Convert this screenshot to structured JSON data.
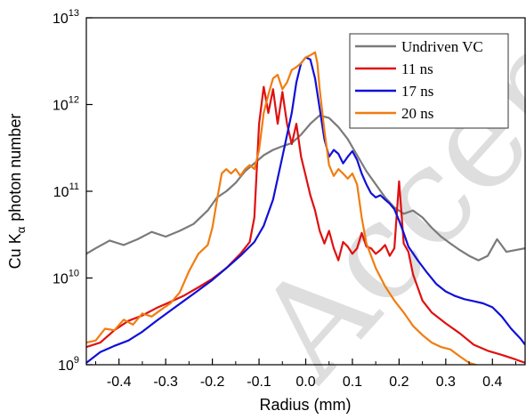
{
  "chart_data": {
    "type": "line",
    "xlabel": "Radius (mm)",
    "ylabel": {
      "prefix": "Cu K",
      "subscript": "α",
      "suffix": "photon number"
    },
    "xlim": [
      -0.47,
      0.47
    ],
    "ylim": [
      1000000000.0,
      10000000000000.0
    ],
    "yscale": "log",
    "xticks": [
      -0.4,
      -0.3,
      -0.2,
      -0.1,
      0.0,
      0.1,
      0.2,
      0.3,
      0.4
    ],
    "xtick_labels": [
      "-0.4",
      "-0.3",
      "-0.2",
      "-0.1",
      "0.0",
      "0.1",
      "0.2",
      "0.3",
      "0.4"
    ],
    "yticks": [
      {
        "value": 1000000000.0,
        "base": "10",
        "exp": "9"
      },
      {
        "value": 10000000000.0,
        "base": "10",
        "exp": "10"
      },
      {
        "value": 100000000000.0,
        "base": "10",
        "exp": "11"
      },
      {
        "value": 1000000000000.0,
        "base": "10",
        "exp": "12"
      },
      {
        "value": 10000000000000.0,
        "base": "10",
        "exp": "13"
      }
    ],
    "grid": false,
    "legend_position": "top-right",
    "watermark": "Accepted",
    "series": [
      {
        "name": "Undriven VC",
        "color": "#7a7a7a",
        "points": [
          [
            -0.47,
            19000000000.0
          ],
          [
            -0.45,
            22000000000.0
          ],
          [
            -0.42,
            27000000000.0
          ],
          [
            -0.39,
            24000000000.0
          ],
          [
            -0.36,
            28000000000.0
          ],
          [
            -0.33,
            34000000000.0
          ],
          [
            -0.3,
            30000000000.0
          ],
          [
            -0.27,
            35000000000.0
          ],
          [
            -0.24,
            42000000000.0
          ],
          [
            -0.21,
            60000000000.0
          ],
          [
            -0.19,
            85000000000.0
          ],
          [
            -0.17,
            100000000000.0
          ],
          [
            -0.15,
            125000000000.0
          ],
          [
            -0.13,
            170000000000.0
          ],
          [
            -0.11,
            210000000000.0
          ],
          [
            -0.09,
            260000000000.0
          ],
          [
            -0.07,
            300000000000.0
          ],
          [
            -0.05,
            330000000000.0
          ],
          [
            -0.03,
            360000000000.0
          ],
          [
            -0.01,
            450000000000.0
          ],
          [
            0.01,
            600000000000.0
          ],
          [
            0.03,
            750000000000.0
          ],
          [
            0.05,
            700000000000.0
          ],
          [
            0.07,
            550000000000.0
          ],
          [
            0.09,
            400000000000.0
          ],
          [
            0.11,
            260000000000.0
          ],
          [
            0.13,
            170000000000.0
          ],
          [
            0.15,
            120000000000.0
          ],
          [
            0.17,
            85000000000.0
          ],
          [
            0.19,
            65000000000.0
          ],
          [
            0.21,
            55000000000.0
          ],
          [
            0.23,
            60000000000.0
          ],
          [
            0.25,
            50000000000.0
          ],
          [
            0.27,
            38000000000.0
          ],
          [
            0.29,
            30000000000.0
          ],
          [
            0.31,
            25000000000.0
          ],
          [
            0.33,
            21000000000.0
          ],
          [
            0.35,
            18000000000.0
          ],
          [
            0.37,
            16000000000.0
          ],
          [
            0.39,
            18000000000.0
          ],
          [
            0.41,
            28000000000.0
          ],
          [
            0.43,
            20000000000.0
          ],
          [
            0.45,
            21000000000.0
          ],
          [
            0.47,
            22000000000.0
          ]
        ]
      },
      {
        "name": "11 ns",
        "color": "#e01010",
        "points": [
          [
            -0.47,
            1600000000.0
          ],
          [
            -0.44,
            1800000000.0
          ],
          [
            -0.41,
            2500000000.0
          ],
          [
            -0.38,
            3200000000.0
          ],
          [
            -0.35,
            3700000000.0
          ],
          [
            -0.32,
            4500000000.0
          ],
          [
            -0.29,
            5300000000.0
          ],
          [
            -0.26,
            6300000000.0
          ],
          [
            -0.23,
            7800000000.0
          ],
          [
            -0.2,
            9800000000.0
          ],
          [
            -0.17,
            13000000000.0
          ],
          [
            -0.14,
            19000000000.0
          ],
          [
            -0.12,
            26000000000.0
          ],
          [
            -0.11,
            50000000000.0
          ],
          [
            -0.1,
            600000000000.0
          ],
          [
            -0.09,
            1600000000000.0
          ],
          [
            -0.08,
            800000000000.0
          ],
          [
            -0.07,
            1500000000000.0
          ],
          [
            -0.06,
            600000000000.0
          ],
          [
            -0.05,
            1400000000000.0
          ],
          [
            -0.04,
            600000000000.0
          ],
          [
            -0.03,
            350000000000.0
          ],
          [
            -0.02,
            600000000000.0
          ],
          [
            -0.01,
            250000000000.0
          ],
          [
            0.0,
            150000000000.0
          ],
          [
            0.01,
            90000000000.0
          ],
          [
            0.02,
            60000000000.0
          ],
          [
            0.03,
            35000000000.0
          ],
          [
            0.04,
            25000000000.0
          ],
          [
            0.05,
            35000000000.0
          ],
          [
            0.06,
            22000000000.0
          ],
          [
            0.07,
            16000000000.0
          ],
          [
            0.08,
            26000000000.0
          ],
          [
            0.09,
            23000000000.0
          ],
          [
            0.1,
            19000000000.0
          ],
          [
            0.11,
            22000000000.0
          ],
          [
            0.12,
            33000000000.0
          ],
          [
            0.13,
            23000000000.0
          ],
          [
            0.14,
            22000000000.0
          ],
          [
            0.15,
            19000000000.0
          ],
          [
            0.16,
            21000000000.0
          ],
          [
            0.17,
            24000000000.0
          ],
          [
            0.18,
            18000000000.0
          ],
          [
            0.19,
            22000000000.0
          ],
          [
            0.2,
            130000000000.0
          ],
          [
            0.21,
            25000000000.0
          ],
          [
            0.22,
            20000000000.0
          ],
          [
            0.23,
            11000000000.0
          ],
          [
            0.25,
            5500000000.0
          ],
          [
            0.27,
            4000000000.0
          ],
          [
            0.3,
            3000000000.0
          ],
          [
            0.33,
            2300000000.0
          ],
          [
            0.36,
            1700000000.0
          ],
          [
            0.39,
            1450000000.0
          ],
          [
            0.42,
            1300000000.0
          ],
          [
            0.45,
            1150000000.0
          ],
          [
            0.47,
            1050000000.0
          ]
        ]
      },
      {
        "name": "17 ns",
        "color": "#1010d8",
        "points": [
          [
            -0.47,
            1050000000.0
          ],
          [
            -0.44,
            1400000000.0
          ],
          [
            -0.41,
            1650000000.0
          ],
          [
            -0.38,
            1900000000.0
          ],
          [
            -0.35,
            2400000000.0
          ],
          [
            -0.32,
            3200000000.0
          ],
          [
            -0.29,
            4200000000.0
          ],
          [
            -0.26,
            5500000000.0
          ],
          [
            -0.23,
            7200000000.0
          ],
          [
            -0.2,
            9500000000.0
          ],
          [
            -0.17,
            13000000000.0
          ],
          [
            -0.14,
            18000000000.0
          ],
          [
            -0.11,
            26000000000.0
          ],
          [
            -0.09,
            40000000000.0
          ],
          [
            -0.07,
            80000000000.0
          ],
          [
            -0.05,
            250000000000.0
          ],
          [
            -0.03,
            800000000000.0
          ],
          [
            -0.02,
            1800000000000.0
          ],
          [
            -0.01,
            3000000000000.0
          ],
          [
            0.0,
            3500000000000.0
          ],
          [
            0.01,
            3300000000000.0
          ],
          [
            0.02,
            2000000000000.0
          ],
          [
            0.03,
            900000000000.0
          ],
          [
            0.04,
            400000000000.0
          ],
          [
            0.05,
            250000000000.0
          ],
          [
            0.06,
            300000000000.0
          ],
          [
            0.07,
            270000000000.0
          ],
          [
            0.08,
            210000000000.0
          ],
          [
            0.09,
            250000000000.0
          ],
          [
            0.1,
            290000000000.0
          ],
          [
            0.11,
            230000000000.0
          ],
          [
            0.12,
            160000000000.0
          ],
          [
            0.13,
            120000000000.0
          ],
          [
            0.14,
            95000000000.0
          ],
          [
            0.15,
            85000000000.0
          ],
          [
            0.16,
            90000000000.0
          ],
          [
            0.17,
            80000000000.0
          ],
          [
            0.18,
            72000000000.0
          ],
          [
            0.19,
            62000000000.0
          ],
          [
            0.2,
            46000000000.0
          ],
          [
            0.21,
            33000000000.0
          ],
          [
            0.22,
            23000000000.0
          ],
          [
            0.24,
            16000000000.0
          ],
          [
            0.26,
            11500000000.0
          ],
          [
            0.28,
            8500000000.0
          ],
          [
            0.3,
            7000000000.0
          ],
          [
            0.32,
            6200000000.0
          ],
          [
            0.34,
            5700000000.0
          ],
          [
            0.36,
            5400000000.0
          ],
          [
            0.38,
            5100000000.0
          ],
          [
            0.4,
            4600000000.0
          ],
          [
            0.42,
            3600000000.0
          ],
          [
            0.44,
            2600000000.0
          ],
          [
            0.46,
            2000000000.0
          ],
          [
            0.47,
            1700000000.0
          ]
        ]
      },
      {
        "name": "20 ns",
        "color": "#f07d10",
        "points": [
          [
            -0.47,
            1800000000.0
          ],
          [
            -0.45,
            1900000000.0
          ],
          [
            -0.43,
            2600000000.0
          ],
          [
            -0.41,
            2500000000.0
          ],
          [
            -0.39,
            3300000000.0
          ],
          [
            -0.37,
            2900000000.0
          ],
          [
            -0.35,
            3900000000.0
          ],
          [
            -0.33,
            3600000000.0
          ],
          [
            -0.31,
            4300000000.0
          ],
          [
            -0.29,
            5100000000.0
          ],
          [
            -0.27,
            6800000000.0
          ],
          [
            -0.25,
            12000000000.0
          ],
          [
            -0.23,
            19000000000.0
          ],
          [
            -0.21,
            24000000000.0
          ],
          [
            -0.2,
            38000000000.0
          ],
          [
            -0.19,
            80000000000.0
          ],
          [
            -0.18,
            160000000000.0
          ],
          [
            -0.17,
            180000000000.0
          ],
          [
            -0.16,
            160000000000.0
          ],
          [
            -0.15,
            180000000000.0
          ],
          [
            -0.14,
            150000000000.0
          ],
          [
            -0.13,
            180000000000.0
          ],
          [
            -0.12,
            200000000000.0
          ],
          [
            -0.11,
            180000000000.0
          ],
          [
            -0.1,
            300000000000.0
          ],
          [
            -0.09,
            800000000000.0
          ],
          [
            -0.08,
            1300000000000.0
          ],
          [
            -0.07,
            2000000000000.0
          ],
          [
            -0.06,
            2200000000000.0
          ],
          [
            -0.05,
            1500000000000.0
          ],
          [
            -0.04,
            1800000000000.0
          ],
          [
            -0.03,
            2500000000000.0
          ],
          [
            -0.02,
            2700000000000.0
          ],
          [
            -0.01,
            3000000000000.0
          ],
          [
            0.0,
            3500000000000.0
          ],
          [
            0.01,
            3700000000000.0
          ],
          [
            0.02,
            4000000000000.0
          ],
          [
            0.025,
            3000000000000.0
          ],
          [
            0.03,
            1500000000000.0
          ],
          [
            0.04,
            500000000000.0
          ],
          [
            0.05,
            200000000000.0
          ],
          [
            0.06,
            150000000000.0
          ],
          [
            0.07,
            180000000000.0
          ],
          [
            0.08,
            160000000000.0
          ],
          [
            0.09,
            140000000000.0
          ],
          [
            0.1,
            160000000000.0
          ],
          [
            0.11,
            120000000000.0
          ],
          [
            0.12,
            50000000000.0
          ],
          [
            0.13,
            25000000000.0
          ],
          [
            0.15,
            13000000000.0
          ],
          [
            0.17,
            8000000000.0
          ],
          [
            0.19,
            5500000000.0
          ],
          [
            0.21,
            4000000000.0
          ],
          [
            0.23,
            2800000000.0
          ],
          [
            0.25,
            2200000000.0
          ],
          [
            0.27,
            1800000000.0
          ],
          [
            0.29,
            1600000000.0
          ],
          [
            0.31,
            1500000000.0
          ],
          [
            0.33,
            1250000000.0
          ],
          [
            0.35,
            1050000000.0
          ],
          [
            0.37,
            980000000.0
          ]
        ]
      }
    ]
  }
}
